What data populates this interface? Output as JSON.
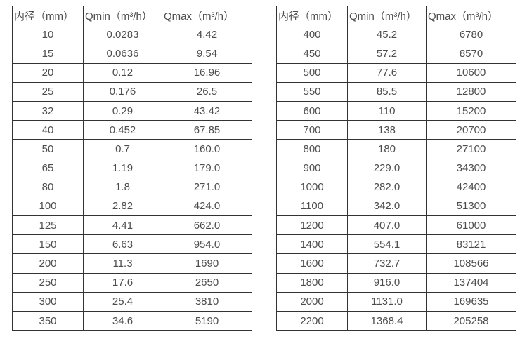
{
  "page": {
    "background": "#ffffff",
    "text_color": "#4d4d4d",
    "border_color": "#333333"
  },
  "tables": [
    {
      "name": "flow-table-small-diameters",
      "headers": [
        "内径（mm）",
        "Qmin（m³/h）",
        "Qmax（m³/h）"
      ],
      "rows": [
        [
          "10",
          "0.0283",
          "4.42"
        ],
        [
          "15",
          "0.0636",
          "9.54"
        ],
        [
          "20",
          "0.12",
          "16.96"
        ],
        [
          "25",
          "0.176",
          "26.5"
        ],
        [
          "32",
          "0.29",
          "43.42"
        ],
        [
          "40",
          "0.452",
          "67.85"
        ],
        [
          "50",
          "0.7",
          "160.0"
        ],
        [
          "65",
          "1.19",
          "179.0"
        ],
        [
          "80",
          "1.8",
          "271.0"
        ],
        [
          "100",
          "2.82",
          "424.0"
        ],
        [
          "125",
          "4.41",
          "662.0"
        ],
        [
          "150",
          "6.63",
          "954.0"
        ],
        [
          "200",
          "11.3",
          "1690"
        ],
        [
          "250",
          "17.6",
          "2650"
        ],
        [
          "300",
          "25.4",
          "3810"
        ],
        [
          "350",
          "34.6",
          "5190"
        ]
      ]
    },
    {
      "name": "flow-table-large-diameters",
      "headers": [
        "内径（mm）",
        "Qmin（m³/h）",
        "Qmax（m³/h）"
      ],
      "rows": [
        [
          "400",
          "45.2",
          "6780"
        ],
        [
          "450",
          "57.2",
          "8570"
        ],
        [
          "500",
          "77.6",
          "10600"
        ],
        [
          "550",
          "85.5",
          "12800"
        ],
        [
          "600",
          "110",
          "15200"
        ],
        [
          "700",
          "138",
          "20700"
        ],
        [
          "800",
          "180",
          "27100"
        ],
        [
          "900",
          "229.0",
          "34300"
        ],
        [
          "1000",
          "282.0",
          "42400"
        ],
        [
          "1100",
          "342.0",
          "51300"
        ],
        [
          "1200",
          "407.0",
          "61000"
        ],
        [
          "1400",
          "554.1",
          "83121"
        ],
        [
          "1600",
          "732.7",
          "108566"
        ],
        [
          "1800",
          "916.0",
          "137404"
        ],
        [
          "2000",
          "1131.0",
          "169635"
        ],
        [
          "2200",
          "1368.4",
          "205258"
        ]
      ]
    }
  ]
}
